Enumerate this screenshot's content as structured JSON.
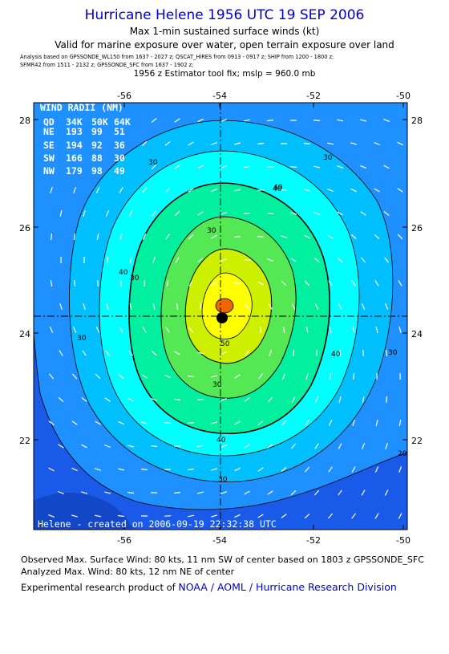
{
  "header": {
    "title": "Hurricane Helene 1956 UTC 19 SEP 2006",
    "subtitle1": "Max 1-min sustained surface winds (kt)",
    "subtitle2": "Valid for marine exposure over water, open terrain exposure over land",
    "analysis_line1": "Analysis based on  GPSSONDE_WL150 from 1637 - 2027 z;  QSCAT_HIRES from 0913 - 0917 z;  SHIP from 1200 - 1800 z;",
    "analysis_line2": "SFMR42 from 1511 - 2132 z;  GPSSONDE_SFC from 1637 - 1902 z;",
    "estimator": "1956 z Estimator tool fix; mslp = 960.0 mb"
  },
  "map": {
    "x_ticks": [
      "-56",
      "-54",
      "-52",
      "-50"
    ],
    "y_ticks": [
      "28",
      "26",
      "24",
      "22"
    ],
    "contour_labels": [
      "30",
      "30",
      "40",
      "30",
      "40",
      "50",
      "30",
      "40",
      "30",
      "30",
      "40",
      "40",
      "30",
      "20",
      "30"
    ],
    "credit": "Helene - created on 2006-09-19 22:32:38 UTC"
  },
  "wind_radii": {
    "title": "WIND RADII (NM)",
    "header": [
      "QD",
      "34K",
      "50K",
      "64K"
    ],
    "rows": [
      [
        "NE",
        "193",
        "99",
        "51"
      ],
      [
        "SE",
        "194",
        "92",
        "36"
      ],
      [
        "SW",
        "166",
        "88",
        "30"
      ],
      [
        "NW",
        "179",
        "98",
        "49"
      ]
    ]
  },
  "footer": {
    "observed": "Observed Max. Surface Wind: 80 kts, 11 nm SW of center based on 1803 z GPSSONDE_SFC",
    "analyzed": "Analyzed Max. Wind: 80 kts, 12 nm NE of center",
    "experimental": "Experimental research product of",
    "org": "NOAA / AOML / Hurricane Research Division"
  },
  "colors": {
    "band_20": "#1a5ae8",
    "band_30": "#1e90ff",
    "band_40": "#00bfff",
    "band_50": "#00ffff",
    "band_60": "#00f0a0",
    "band_70": "#55e855",
    "band_80": "#ccf000",
    "band_90": "#ffff00",
    "core": "#ee6600",
    "title_blue": "#0000cc"
  }
}
